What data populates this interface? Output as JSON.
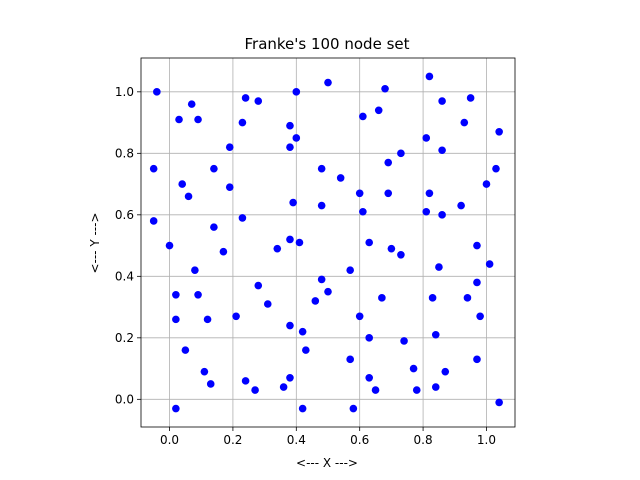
{
  "chart_data": {
    "type": "scatter",
    "title": "Franke's 100 node set",
    "xlabel": "<--- X --->",
    "ylabel": "<--- Y --->",
    "xlim": [
      -0.09,
      1.09
    ],
    "ylim": [
      -0.09,
      1.11
    ],
    "xticks": [
      0.0,
      0.2,
      0.4,
      0.6,
      0.8,
      1.0
    ],
    "yticks": [
      0.0,
      0.2,
      0.4,
      0.6,
      0.8,
      1.0
    ],
    "xtick_labels": [
      "0.0",
      "0.2",
      "0.4",
      "0.6",
      "0.8",
      "1.0"
    ],
    "ytick_labels": [
      "0.0",
      "0.2",
      "0.4",
      "0.6",
      "0.8",
      "1.0"
    ],
    "grid": true,
    "marker_color": "#0000ff",
    "points": [
      [
        -0.04,
        1.0
      ],
      [
        0.07,
        0.96
      ],
      [
        0.03,
        0.91
      ],
      [
        0.09,
        0.91
      ],
      [
        0.24,
        0.98
      ],
      [
        0.28,
        0.97
      ],
      [
        0.4,
        1.0
      ],
      [
        0.5,
        1.03
      ],
      [
        0.68,
        1.01
      ],
      [
        0.82,
        1.05
      ],
      [
        0.86,
        0.97
      ],
      [
        0.95,
        0.98
      ],
      [
        0.23,
        0.9
      ],
      [
        0.38,
        0.89
      ],
      [
        0.61,
        0.92
      ],
      [
        0.66,
        0.94
      ],
      [
        0.93,
        0.9
      ],
      [
        1.04,
        0.87
      ],
      [
        0.4,
        0.85
      ],
      [
        0.38,
        0.82
      ],
      [
        0.19,
        0.82
      ],
      [
        0.81,
        0.85
      ],
      [
        0.86,
        0.81
      ],
      [
        0.73,
        0.8
      ],
      [
        0.69,
        0.77
      ],
      [
        -0.05,
        0.75
      ],
      [
        0.14,
        0.75
      ],
      [
        0.48,
        0.75
      ],
      [
        0.54,
        0.72
      ],
      [
        1.03,
        0.75
      ],
      [
        0.04,
        0.7
      ],
      [
        0.19,
        0.69
      ],
      [
        0.06,
        0.66
      ],
      [
        0.39,
        0.64
      ],
      [
        0.48,
        0.63
      ],
      [
        0.6,
        0.67
      ],
      [
        0.69,
        0.67
      ],
      [
        0.82,
        0.67
      ],
      [
        1.0,
        0.7
      ],
      [
        0.92,
        0.63
      ],
      [
        -0.05,
        0.58
      ],
      [
        0.23,
        0.59
      ],
      [
        0.61,
        0.61
      ],
      [
        0.81,
        0.61
      ],
      [
        0.86,
        0.6
      ],
      [
        0.14,
        0.56
      ],
      [
        0.0,
        0.5
      ],
      [
        0.17,
        0.48
      ],
      [
        0.34,
        0.49
      ],
      [
        0.38,
        0.52
      ],
      [
        0.41,
        0.51
      ],
      [
        0.63,
        0.51
      ],
      [
        0.7,
        0.49
      ],
      [
        0.73,
        0.47
      ],
      [
        0.97,
        0.5
      ],
      [
        0.08,
        0.42
      ],
      [
        0.57,
        0.42
      ],
      [
        0.85,
        0.43
      ],
      [
        1.01,
        0.44
      ],
      [
        0.48,
        0.39
      ],
      [
        0.97,
        0.38
      ],
      [
        0.02,
        0.34
      ],
      [
        0.09,
        0.34
      ],
      [
        0.28,
        0.37
      ],
      [
        0.5,
        0.35
      ],
      [
        0.46,
        0.32
      ],
      [
        0.31,
        0.31
      ],
      [
        0.67,
        0.33
      ],
      [
        0.83,
        0.33
      ],
      [
        0.94,
        0.33
      ],
      [
        0.02,
        0.26
      ],
      [
        0.12,
        0.26
      ],
      [
        0.21,
        0.27
      ],
      [
        0.6,
        0.27
      ],
      [
        0.98,
        0.27
      ],
      [
        0.38,
        0.24
      ],
      [
        0.42,
        0.22
      ],
      [
        0.63,
        0.2
      ],
      [
        0.74,
        0.19
      ],
      [
        0.84,
        0.21
      ],
      [
        0.05,
        0.16
      ],
      [
        0.43,
        0.16
      ],
      [
        0.57,
        0.13
      ],
      [
        0.97,
        0.13
      ],
      [
        0.11,
        0.09
      ],
      [
        0.77,
        0.1
      ],
      [
        0.87,
        0.09
      ],
      [
        0.13,
        0.05
      ],
      [
        0.24,
        0.06
      ],
      [
        0.38,
        0.07
      ],
      [
        0.63,
        0.07
      ],
      [
        0.27,
        0.03
      ],
      [
        0.36,
        0.04
      ],
      [
        0.65,
        0.03
      ],
      [
        0.78,
        0.03
      ],
      [
        0.84,
        0.04
      ],
      [
        0.02,
        -0.03
      ],
      [
        0.42,
        -0.03
      ],
      [
        0.58,
        -0.03
      ],
      [
        1.04,
        -0.01
      ]
    ]
  }
}
